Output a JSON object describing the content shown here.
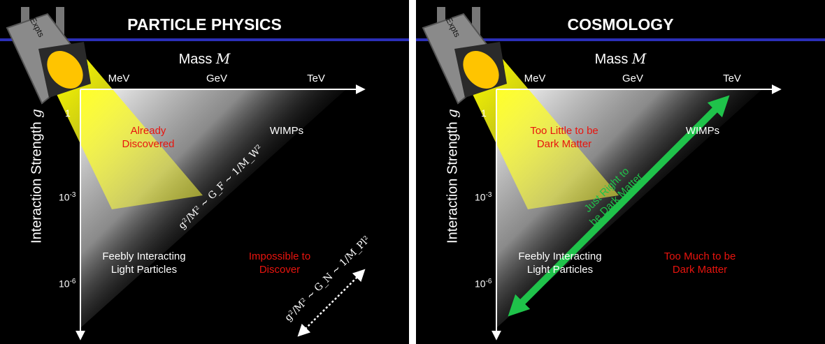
{
  "left_panel": {
    "title": "PARTICLE PHYSICS",
    "lamp_label": "Expts",
    "mass_label_prefix": "Mass ",
    "mass_label_var": "M",
    "x_ticks": [
      "MeV",
      "GeV",
      "TeV"
    ],
    "y_axis_label_prefix": "Interaction Strength ",
    "y_axis_label_var": "g",
    "y_ticks": {
      "one": "1",
      "milli_base": "10",
      "milli_exp": "-3",
      "micro_base": "10",
      "micro_exp": "-6"
    },
    "regions": {
      "already_line1": "Already",
      "already_line2": "Discovered",
      "wimps": "WIMPs",
      "feebly_line1": "Feebly Interacting",
      "feebly_line2": "Light Particles",
      "impossible_line1": "Impossible to",
      "impossible_line2": "Discover"
    },
    "formula_fermi": "g²/M² ~ G_F ~ 1/M_W²",
    "formula_newton": "g²/M² ~ G_N ~ 1/M_Pl²"
  },
  "right_panel": {
    "title": "COSMOLOGY",
    "lamp_label": "Expts",
    "mass_label_prefix": "Mass ",
    "mass_label_var": "M",
    "x_ticks": [
      "MeV",
      "GeV",
      "TeV"
    ],
    "y_axis_label_prefix": "Interaction Strength ",
    "y_axis_label_var": "g",
    "y_ticks": {
      "one": "1",
      "milli_base": "10",
      "milli_exp": "-3",
      "micro_base": "10",
      "micro_exp": "-6"
    },
    "regions": {
      "too_little_line1": "Too Little to be",
      "too_little_line2": "Dark Matter",
      "wimps": "WIMPs",
      "just_right_line1": "Just Right to",
      "just_right_line2": "be Dark Matter",
      "feebly_line1": "Feebly Interacting",
      "feebly_line2": "Light Particles",
      "too_much_line1": "Too Much to be",
      "too_much_line2": "Dark Matter"
    }
  },
  "colors": {
    "background": "#000000",
    "title_bar_line": "#2b2fb8",
    "warning_red": "#e8140e",
    "dark_matter_green": "#1fc24a",
    "lamp_yellow": "#ffd21a"
  }
}
